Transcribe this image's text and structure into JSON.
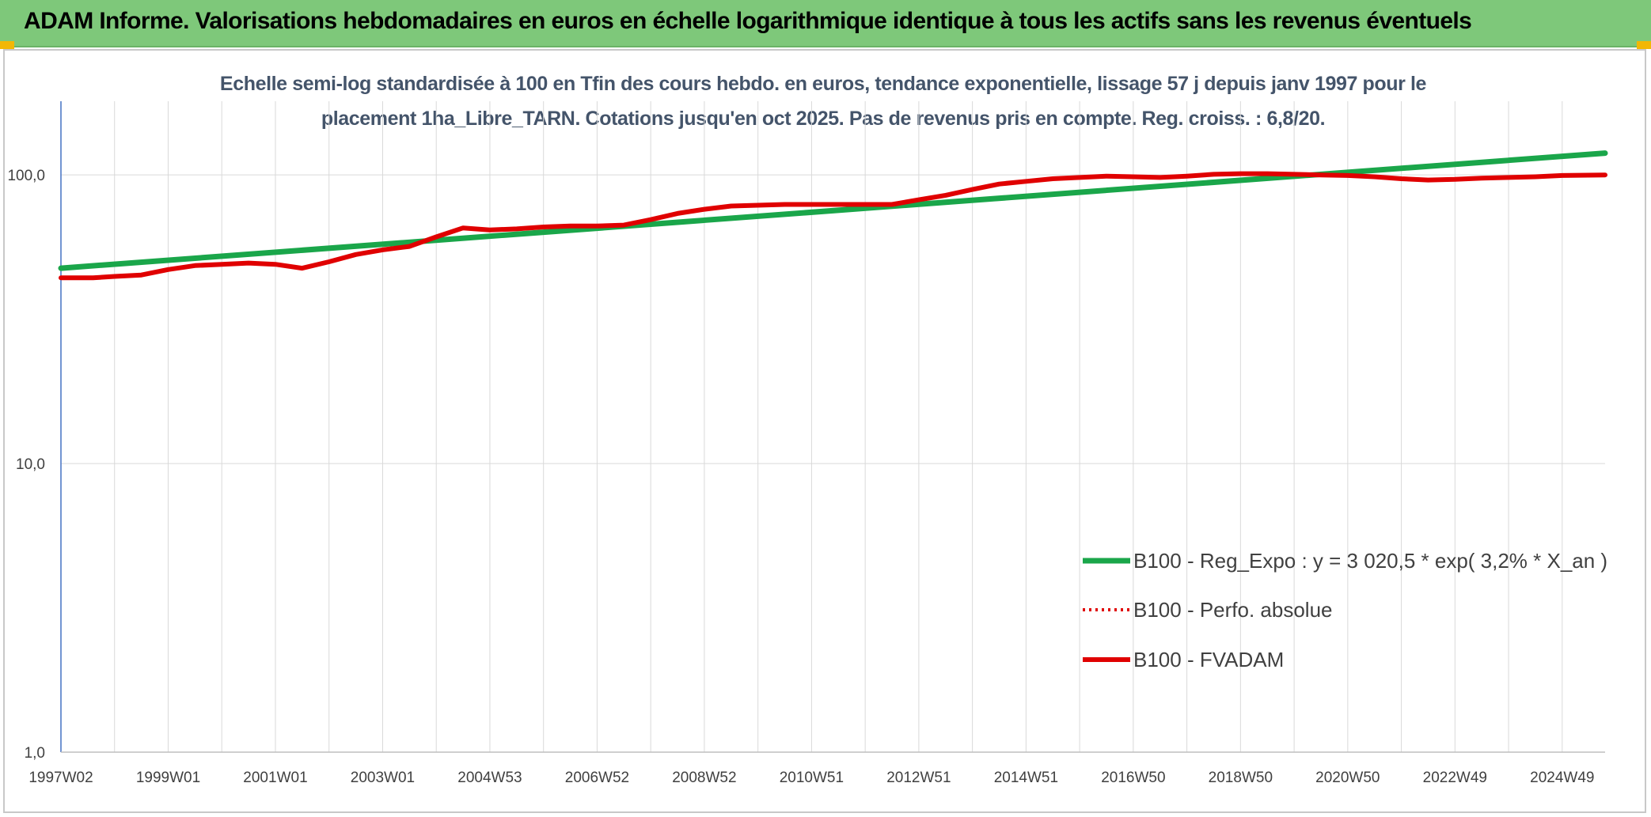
{
  "header": {
    "title": "ADAM Informe. Valorisations hebdomadaires en euros en échelle logarithmique identique à tous les actifs sans les revenus éventuels"
  },
  "colors": {
    "header_bg": "#7ec87a",
    "trend": "#1aa64a",
    "perf": "#e00000",
    "fvadam": "#e00000",
    "title_text": "#44546a",
    "grid": "#d9d9d9",
    "axis": "#4472c4"
  },
  "chart_data": {
    "type": "line",
    "title_line1": "Echelle semi-log standardisée à 100 en Tfin des cours hebdo. en euros, tendance exponentielle, lissage 57 j depuis janv 1997 pour le",
    "title_line2": "placement 1ha_Libre_TARN. Cotations jusqu'en oct 2025. Pas de revenus pris en compte. Reg. croiss. : 6,8/20.",
    "y_scale": "log",
    "ylim": [
      1,
      180
    ],
    "y_ticks": [
      {
        "value": 100,
        "label": "100,0"
      },
      {
        "value": 10,
        "label": "10,0"
      },
      {
        "value": 1,
        "label": "1,0"
      }
    ],
    "xlim": [
      1997.0,
      2025.8
    ],
    "x_ticks": [
      {
        "x": 1997.0,
        "label": "1997W02"
      },
      {
        "x": 1999.0,
        "label": "1999W01"
      },
      {
        "x": 2001.0,
        "label": "2001W01"
      },
      {
        "x": 2003.0,
        "label": "2003W01"
      },
      {
        "x": 2005.0,
        "label": "2004W53"
      },
      {
        "x": 2007.0,
        "label": "2006W52"
      },
      {
        "x": 2009.0,
        "label": "2008W52"
      },
      {
        "x": 2011.0,
        "label": "2010W51"
      },
      {
        "x": 2013.0,
        "label": "2012W51"
      },
      {
        "x": 2015.0,
        "label": "2014W51"
      },
      {
        "x": 2017.0,
        "label": "2016W50"
      },
      {
        "x": 2019.0,
        "label": "2018W50"
      },
      {
        "x": 2021.0,
        "label": "2020W50"
      },
      {
        "x": 2023.0,
        "label": "2022W49"
      },
      {
        "x": 2025.0,
        "label": "2024W49"
      }
    ],
    "legend_position": "right-middle",
    "series": [
      {
        "name": "B100 - Reg_Expo : y = 3 020,5 * exp( 3,2% *  X_an )",
        "style": "solid",
        "points": [
          [
            1997.0,
            47.5
          ],
          [
            2025.8,
            119
          ]
        ]
      },
      {
        "name": "B100 - Perfo. absolue",
        "style": "dotted",
        "points": [
          [
            1997.0,
            44
          ],
          [
            1997.6,
            44
          ],
          [
            1998.0,
            44.5
          ],
          [
            1998.5,
            45
          ],
          [
            1999.0,
            47
          ],
          [
            1999.5,
            48.5
          ],
          [
            2000.0,
            49
          ],
          [
            2000.5,
            49.5
          ],
          [
            2001.0,
            49
          ],
          [
            2001.5,
            47.5
          ],
          [
            2002.0,
            50
          ],
          [
            2002.5,
            53
          ],
          [
            2003.0,
            55
          ],
          [
            2003.5,
            56.5
          ],
          [
            2004.0,
            61
          ],
          [
            2004.5,
            65.5
          ],
          [
            2005.0,
            64.5
          ],
          [
            2005.5,
            65
          ],
          [
            2006.0,
            66
          ],
          [
            2006.5,
            66.5
          ],
          [
            2007.0,
            66.5
          ],
          [
            2007.5,
            67
          ],
          [
            2008.0,
            70
          ],
          [
            2008.5,
            73.5
          ],
          [
            2009.0,
            76
          ],
          [
            2009.5,
            78
          ],
          [
            2010.0,
            78.5
          ],
          [
            2010.5,
            79
          ],
          [
            2011.0,
            79
          ],
          [
            2011.5,
            79
          ],
          [
            2012.0,
            79
          ],
          [
            2012.5,
            79
          ],
          [
            2013.0,
            82
          ],
          [
            2013.5,
            85
          ],
          [
            2014.0,
            89
          ],
          [
            2014.5,
            93
          ],
          [
            2015.0,
            95
          ],
          [
            2015.5,
            97
          ],
          [
            2016.0,
            98
          ],
          [
            2016.5,
            99
          ],
          [
            2017.0,
            98.5
          ],
          [
            2017.5,
            98
          ],
          [
            2018.0,
            99
          ],
          [
            2018.5,
            100.5
          ],
          [
            2019.0,
            101
          ],
          [
            2019.5,
            101
          ],
          [
            2020.0,
            100.5
          ],
          [
            2020.5,
            100
          ],
          [
            2021.0,
            99.5
          ],
          [
            2021.5,
            98.5
          ],
          [
            2022.0,
            97
          ],
          [
            2022.5,
            96
          ],
          [
            2023.0,
            96.5
          ],
          [
            2023.5,
            97.5
          ],
          [
            2024.0,
            98
          ],
          [
            2024.5,
            98.5
          ],
          [
            2025.0,
            99.5
          ],
          [
            2025.8,
            100
          ]
        ]
      },
      {
        "name": "B100 - FVADAM",
        "style": "solid",
        "points": [
          [
            1997.0,
            44
          ],
          [
            1997.6,
            44
          ],
          [
            1998.0,
            44.5
          ],
          [
            1998.5,
            45
          ],
          [
            1999.0,
            47
          ],
          [
            1999.5,
            48.5
          ],
          [
            2000.0,
            49
          ],
          [
            2000.5,
            49.5
          ],
          [
            2001.0,
            49
          ],
          [
            2001.5,
            47.5
          ],
          [
            2002.0,
            50
          ],
          [
            2002.5,
            53
          ],
          [
            2003.0,
            55
          ],
          [
            2003.5,
            56.5
          ],
          [
            2004.0,
            61
          ],
          [
            2004.5,
            65.5
          ],
          [
            2005.0,
            64.5
          ],
          [
            2005.5,
            65
          ],
          [
            2006.0,
            66
          ],
          [
            2006.5,
            66.5
          ],
          [
            2007.0,
            66.5
          ],
          [
            2007.5,
            67
          ],
          [
            2008.0,
            70
          ],
          [
            2008.5,
            73.5
          ],
          [
            2009.0,
            76
          ],
          [
            2009.5,
            78
          ],
          [
            2010.0,
            78.5
          ],
          [
            2010.5,
            79
          ],
          [
            2011.0,
            79
          ],
          [
            2011.5,
            79
          ],
          [
            2012.0,
            79
          ],
          [
            2012.5,
            79
          ],
          [
            2013.0,
            82
          ],
          [
            2013.5,
            85
          ],
          [
            2014.0,
            89
          ],
          [
            2014.5,
            93
          ],
          [
            2015.0,
            95
          ],
          [
            2015.5,
            97
          ],
          [
            2016.0,
            98
          ],
          [
            2016.5,
            99
          ],
          [
            2017.0,
            98.5
          ],
          [
            2017.5,
            98
          ],
          [
            2018.0,
            99
          ],
          [
            2018.5,
            100.5
          ],
          [
            2019.0,
            101
          ],
          [
            2019.5,
            101
          ],
          [
            2020.0,
            100.5
          ],
          [
            2020.5,
            100
          ],
          [
            2021.0,
            99.5
          ],
          [
            2021.5,
            98.5
          ],
          [
            2022.0,
            97
          ],
          [
            2022.5,
            96
          ],
          [
            2023.0,
            96.5
          ],
          [
            2023.5,
            97.5
          ],
          [
            2024.0,
            98
          ],
          [
            2024.5,
            98.5
          ],
          [
            2025.0,
            99.5
          ],
          [
            2025.8,
            100
          ]
        ]
      }
    ]
  }
}
